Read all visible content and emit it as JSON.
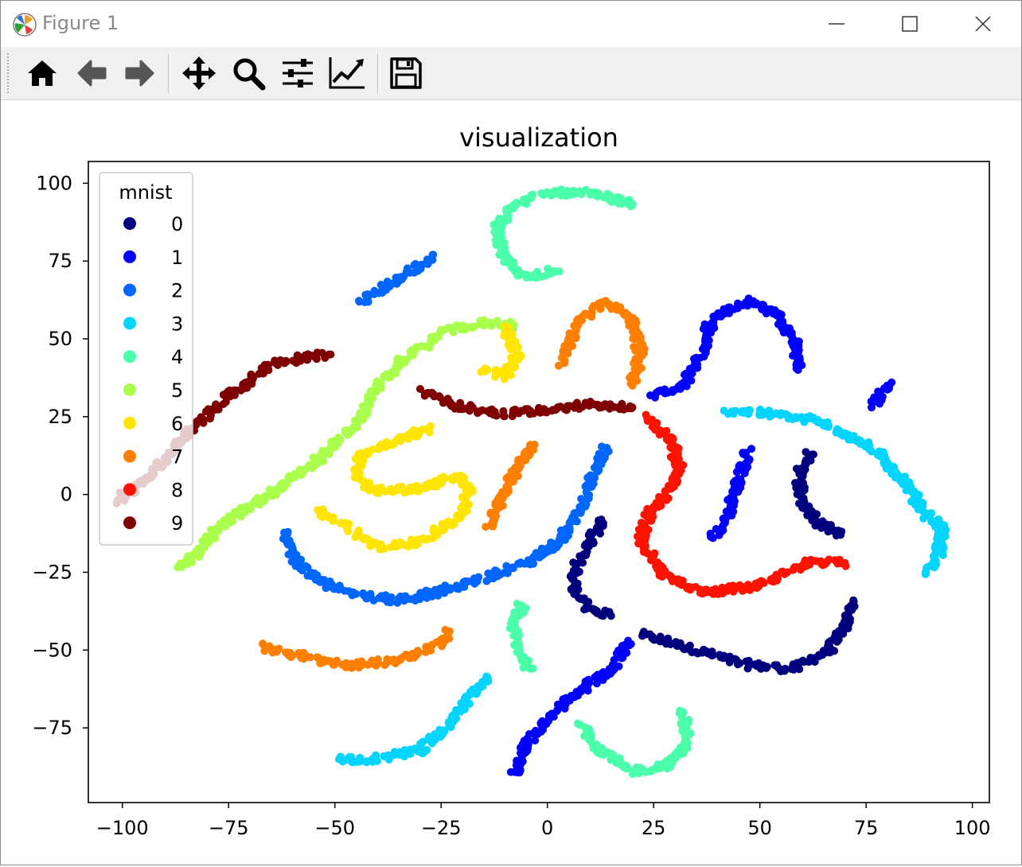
{
  "window": {
    "title": "Figure 1"
  },
  "toolbar": {
    "buttons": [
      {
        "name": "home-icon"
      },
      {
        "name": "back-arrow-icon"
      },
      {
        "name": "forward-arrow-icon"
      },
      {
        "name": "pan-icon"
      },
      {
        "name": "zoom-icon"
      },
      {
        "name": "configure-subplots-icon"
      },
      {
        "name": "edit-axis-icon"
      },
      {
        "name": "save-icon"
      }
    ]
  },
  "chart_data": {
    "type": "scatter",
    "title": "visualization",
    "xlabel": "",
    "ylabel": "",
    "xlim": [
      -108,
      104
    ],
    "ylim": [
      -99,
      107
    ],
    "xticks": [
      -100,
      -75,
      -50,
      -25,
      0,
      25,
      50,
      75,
      100
    ],
    "xtick_labels": [
      "−100",
      "−75",
      "−50",
      "−25",
      "0",
      "25",
      "50",
      "75",
      "100"
    ],
    "yticks": [
      -75,
      -50,
      -25,
      0,
      25,
      50,
      75,
      100
    ],
    "ytick_labels": [
      "−75",
      "−50",
      "−25",
      "0",
      "25",
      "50",
      "75",
      "100"
    ],
    "grid": false,
    "legend": {
      "title": "mnist",
      "position": "upper left"
    },
    "series": [
      {
        "name": "0",
        "color": "#00007f",
        "paths": [
          [
            [
              22,
              -45
            ],
            [
              35,
              -50
            ],
            [
              48,
              -55
            ],
            [
              58,
              -56
            ],
            [
              66,
              -50
            ],
            [
              70,
              -43
            ],
            [
              72,
              -34
            ]
          ],
          [
            [
              62,
              13
            ],
            [
              59,
              6
            ],
            [
              60,
              -2
            ],
            [
              64,
              -9
            ],
            [
              69,
              -13
            ]
          ],
          [
            [
              13,
              -8
            ],
            [
              10,
              -15
            ],
            [
              7,
              -22
            ],
            [
              6,
              -30
            ],
            [
              9,
              -36
            ],
            [
              15,
              -39
            ]
          ]
        ]
      },
      {
        "name": "1",
        "color": "#0000ff",
        "paths": [
          [
            [
              -8,
              -90
            ],
            [
              -5,
              -80
            ],
            [
              1,
              -70
            ],
            [
              10,
              -61
            ],
            [
              16,
              -55
            ],
            [
              19,
              -47
            ]
          ],
          [
            [
              25,
              32
            ],
            [
              32,
              35
            ],
            [
              36,
              44
            ],
            [
              38,
              54
            ],
            [
              42,
              59
            ],
            [
              48,
              62
            ],
            [
              54,
              58
            ],
            [
              58,
              50
            ],
            [
              59,
              40
            ]
          ],
          [
            [
              47,
              14
            ],
            [
              45,
              4
            ],
            [
              42,
              -8
            ],
            [
              39,
              -14
            ]
          ],
          [
            [
              77,
              29
            ],
            [
              81,
              36
            ]
          ]
        ]
      },
      {
        "name": "2",
        "color": "#0066ff",
        "paths": [
          [
            [
              -44,
              62
            ],
            [
              -34,
              70
            ],
            [
              -27,
              77
            ]
          ],
          [
            [
              -62,
              -12
            ],
            [
              -60,
              -20
            ],
            [
              -55,
              -27
            ],
            [
              -45,
              -32
            ],
            [
              -35,
              -34
            ],
            [
              -25,
              -31
            ],
            [
              -15,
              -27
            ],
            [
              -5,
              -22
            ],
            [
              3,
              -15
            ],
            [
              8,
              -5
            ],
            [
              10,
              4
            ],
            [
              14,
              15
            ]
          ]
        ]
      },
      {
        "name": "3",
        "color": "#00d4ff",
        "paths": [
          [
            [
              42,
              27
            ],
            [
              52,
              26
            ],
            [
              62,
              24
            ],
            [
              70,
              20
            ],
            [
              78,
              13
            ],
            [
              84,
              4
            ],
            [
              89,
              -6
            ],
            [
              93,
              -11
            ],
            [
              92,
              -20
            ],
            [
              89,
              -25
            ]
          ],
          [
            [
              -49,
              -85
            ],
            [
              -40,
              -85
            ],
            [
              -30,
              -82
            ],
            [
              -22,
              -73
            ],
            [
              -17,
              -62
            ],
            [
              -14,
              -59
            ]
          ]
        ]
      },
      {
        "name": "4",
        "color": "#4cffaa",
        "paths": [
          [
            [
              2,
              72
            ],
            [
              -5,
              70
            ],
            [
              -10,
              75
            ],
            [
              -12,
              85
            ],
            [
              -8,
              93
            ],
            [
              0,
              97
            ],
            [
              10,
              97
            ],
            [
              20,
              93
            ]
          ],
          [
            [
              -6,
              -35
            ],
            [
              -8,
              -42
            ],
            [
              -7,
              -50
            ],
            [
              -4,
              -56
            ]
          ],
          [
            [
              8,
              -73
            ],
            [
              12,
              -82
            ],
            [
              20,
              -89
            ],
            [
              28,
              -87
            ],
            [
              33,
              -80
            ],
            [
              32,
              -70
            ]
          ]
        ]
      },
      {
        "name": "5",
        "color": "#aaff4c",
        "paths": [
          [
            [
              -86,
              -24
            ],
            [
              -77,
              -10
            ],
            [
              -65,
              0
            ],
            [
              -55,
              10
            ],
            [
              -45,
              22
            ],
            [
              -40,
              35
            ],
            [
              -35,
              42
            ],
            [
              -25,
              52
            ],
            [
              -15,
              55
            ],
            [
              -8,
              55
            ],
            [
              -10,
              52
            ]
          ]
        ]
      },
      {
        "name": "6",
        "color": "#ffe500",
        "paths": [
          [
            [
              -28,
              21
            ],
            [
              -35,
              18
            ],
            [
              -44,
              12
            ],
            [
              -45,
              6
            ],
            [
              -40,
              1
            ],
            [
              -30,
              2
            ],
            [
              -21,
              6
            ],
            [
              -18,
              2
            ],
            [
              -21,
              -8
            ],
            [
              -30,
              -15
            ],
            [
              -40,
              -17
            ],
            [
              -50,
              -8
            ],
            [
              -54,
              -5
            ]
          ],
          [
            [
              -15,
              40
            ],
            [
              -10,
              38
            ],
            [
              -7,
              45
            ],
            [
              -10,
              54
            ]
          ]
        ]
      },
      {
        "name": "7",
        "color": "#ff7f00",
        "paths": [
          [
            [
              -67,
              -49
            ],
            [
              -55,
              -53
            ],
            [
              -45,
              -55
            ],
            [
              -35,
              -53
            ],
            [
              -25,
              -48
            ],
            [
              -23,
              -44
            ]
          ],
          [
            [
              -14,
              -10
            ],
            [
              -10,
              0
            ],
            [
              -7,
              9
            ],
            [
              -3,
              16
            ]
          ],
          [
            [
              3,
              42
            ],
            [
              5,
              48
            ],
            [
              8,
              57
            ],
            [
              14,
              62
            ],
            [
              20,
              56
            ],
            [
              22,
              45
            ],
            [
              20,
              35
            ]
          ]
        ]
      },
      {
        "name": "8",
        "color": "#ff1300",
        "paths": [
          [
            [
              23,
              25
            ],
            [
              29,
              18
            ],
            [
              31,
              8
            ],
            [
              28,
              0
            ],
            [
              24,
              -6
            ],
            [
              22,
              -15
            ],
            [
              27,
              -25
            ],
            [
              35,
              -31
            ],
            [
              42,
              -31
            ],
            [
              50,
              -29
            ],
            [
              56,
              -25
            ],
            [
              62,
              -22
            ],
            [
              70,
              -22
            ]
          ]
        ]
      },
      {
        "name": "9",
        "color": "#7f0000",
        "paths": [
          [
            [
              -101,
              -2
            ],
            [
              -92,
              8
            ],
            [
              -83,
              22
            ],
            [
              -75,
              32
            ],
            [
              -65,
              42
            ],
            [
              -57,
              44
            ],
            [
              -51,
              45
            ]
          ],
          [
            [
              -29,
              33
            ],
            [
              -20,
              28
            ],
            [
              -10,
              26
            ],
            [
              0,
              27
            ],
            [
              10,
              29
            ],
            [
              20,
              28
            ]
          ]
        ]
      }
    ]
  }
}
